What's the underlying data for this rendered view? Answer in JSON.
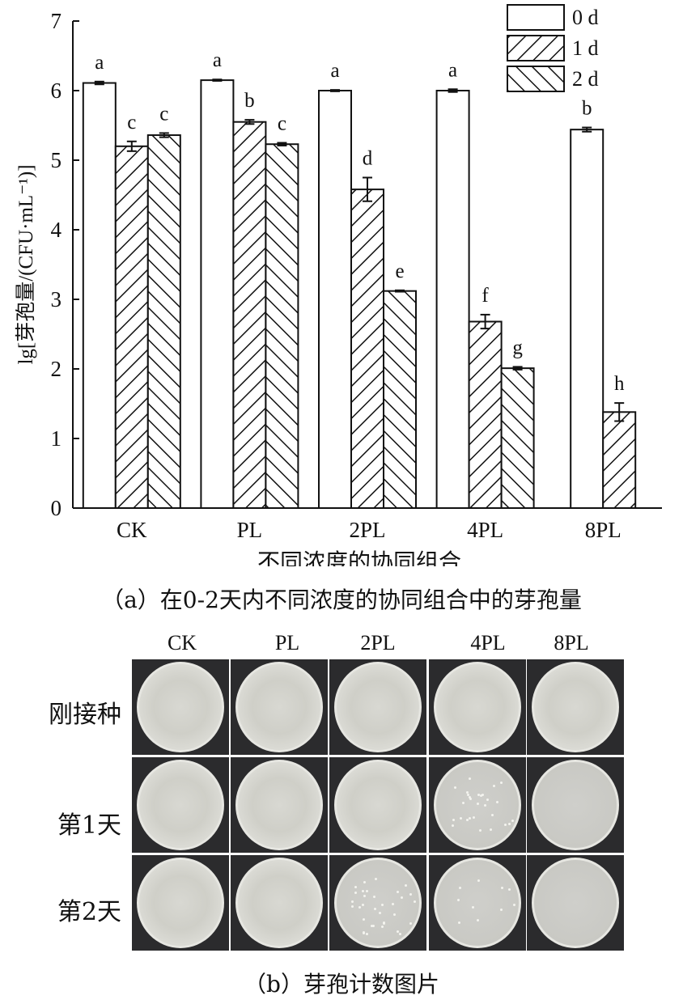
{
  "chart_data": {
    "type": "bar",
    "title": "",
    "ylabel": "lg[芽孢量/(CFU·mL⁻¹)]",
    "xlabel": "不同浓度的协同组合",
    "ylim": [
      0,
      7
    ],
    "yticks": [
      "0",
      "1",
      "2",
      "3",
      "4",
      "5",
      "6",
      "7"
    ],
    "categories": [
      "CK",
      "PL",
      "2PL",
      "4PL",
      "8PL"
    ],
    "legend_position": "top-right",
    "series": [
      {
        "name": "0 d",
        "pattern": "blank",
        "values": [
          6.11,
          6.15,
          6.0,
          6.0,
          5.44
        ],
        "errors": [
          0.02,
          0.01,
          0.01,
          0.02,
          0.03
        ],
        "letters": [
          "a",
          "a",
          "a",
          "a",
          "b"
        ]
      },
      {
        "name": "1 d",
        "pattern": "forward-hatch",
        "values": [
          5.2,
          5.55,
          4.58,
          2.68,
          1.38
        ],
        "errors": [
          0.07,
          0.03,
          0.17,
          0.1,
          0.13
        ],
        "letters": [
          "c",
          "b",
          "d",
          "f",
          "h"
        ]
      },
      {
        "name": "2 d",
        "pattern": "back-hatch",
        "values": [
          5.36,
          5.23,
          3.12,
          2.01,
          null
        ],
        "errors": [
          0.03,
          0.02,
          0.01,
          0.02,
          null
        ],
        "letters": [
          "c",
          "c",
          "e",
          "g",
          null
        ]
      }
    ],
    "grid": false
  },
  "caption_a": "（a）在0-2天内不同浓度的协同组合中的芽孢量",
  "photo_panel": {
    "columns": [
      "CK",
      "PL",
      "2PL",
      "4PL",
      "8PL"
    ],
    "rows": [
      {
        "label": "刚接种",
        "colony_counts": [
          0,
          0,
          0,
          0,
          0
        ],
        "lawn": [
          true,
          true,
          true,
          true,
          true
        ]
      },
      {
        "label": "第1天",
        "colony_counts": [
          0,
          0,
          0,
          28,
          0
        ],
        "lawn": [
          true,
          true,
          true,
          false,
          false
        ]
      },
      {
        "label": "第2天",
        "colony_counts": [
          0,
          0,
          34,
          10,
          0
        ],
        "lawn": [
          true,
          true,
          false,
          false,
          false
        ]
      }
    ],
    "colors": {
      "plate_bg": "#2b2b2d",
      "agar": "#c9c9c4",
      "lawn": "#d8d8d2",
      "rim": "#e6e6e1"
    }
  },
  "caption_b": "（b）芽孢计数图片"
}
